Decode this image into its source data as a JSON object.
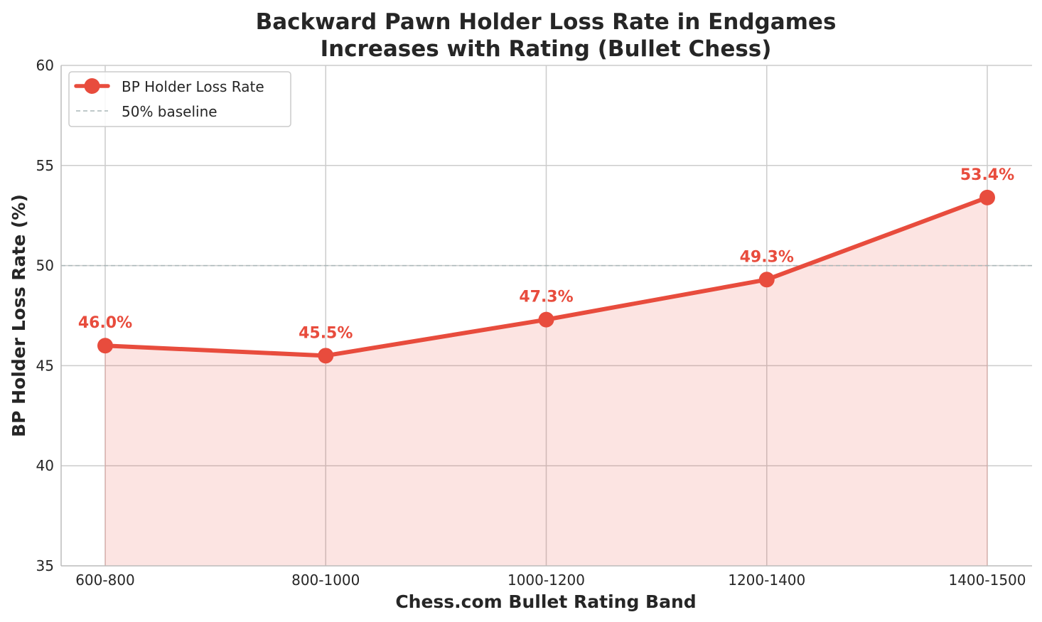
{
  "chart_data": {
    "type": "line",
    "title_line1": "Backward Pawn Holder Loss Rate in Endgames",
    "title_line2": "Increases with Rating (Bullet Chess)",
    "xlabel": "Chess.com Bullet Rating Band",
    "ylabel": "BP Holder Loss Rate (%)",
    "categories": [
      "600-800",
      "800-1000",
      "1000-1200",
      "1200-1400",
      "1400-1500"
    ],
    "series": [
      {
        "name": "BP Holder Loss Rate",
        "values": [
          46.0,
          45.5,
          47.3,
          49.3,
          53.4
        ],
        "labels": [
          "46.0%",
          "45.5%",
          "47.3%",
          "49.3%",
          "53.4%"
        ],
        "color": "#e84c3d",
        "fill": "area"
      }
    ],
    "reference_line": {
      "name": "50% baseline",
      "value": 50,
      "color": "#aab7b8",
      "style": "dashed"
    },
    "ylim": [
      35,
      60
    ],
    "yticks": [
      "35",
      "40",
      "45",
      "50",
      "55",
      "60"
    ],
    "grid": true,
    "legend_position": "upper-left"
  }
}
